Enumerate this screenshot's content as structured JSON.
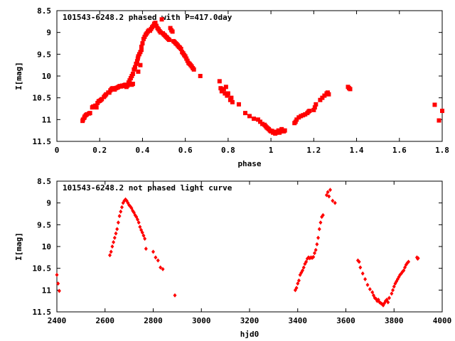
{
  "chart_data": [
    {
      "type": "scatter",
      "title": "101543-6248.2 phased with P=417.0day",
      "xlabel": "phase",
      "ylabel": "I[mag]",
      "xlim": [
        0,
        1.8
      ],
      "ylim": [
        11.5,
        8.5
      ],
      "y_inverted": true,
      "grid": false,
      "marker_color": "#ff0000",
      "marker_style": "filled-square",
      "x_ticks": [
        "0",
        "0.2",
        "0.4",
        "0.6",
        "0.8",
        "1",
        "1.2",
        "1.4",
        "1.6",
        "1.8"
      ],
      "y_ticks": [
        "8.5",
        "9",
        "9.5",
        "10",
        "10.5",
        "11",
        "11.5"
      ],
      "points": [
        [
          0.12,
          11.03
        ],
        [
          0.122,
          11.0
        ],
        [
          0.128,
          10.96
        ],
        [
          0.13,
          10.93
        ],
        [
          0.135,
          10.9
        ],
        [
          0.14,
          10.88
        ],
        [
          0.15,
          10.86
        ],
        [
          0.155,
          10.85
        ],
        [
          0.165,
          10.72
        ],
        [
          0.17,
          10.7
        ],
        [
          0.175,
          10.7
        ],
        [
          0.18,
          10.68
        ],
        [
          0.185,
          10.72
        ],
        [
          0.19,
          10.62
        ],
        [
          0.195,
          10.58
        ],
        [
          0.2,
          10.57
        ],
        [
          0.205,
          10.55
        ],
        [
          0.21,
          10.53
        ],
        [
          0.22,
          10.48
        ],
        [
          0.225,
          10.45
        ],
        [
          0.23,
          10.42
        ],
        [
          0.24,
          10.38
        ],
        [
          0.245,
          10.38
        ],
        [
          0.25,
          10.33
        ],
        [
          0.255,
          10.3
        ],
        [
          0.26,
          10.28
        ],
        [
          0.265,
          10.3
        ],
        [
          0.27,
          10.31
        ],
        [
          0.275,
          10.28
        ],
        [
          0.28,
          10.27
        ],
        [
          0.285,
          10.26
        ],
        [
          0.29,
          10.24
        ],
        [
          0.295,
          10.23
        ],
        [
          0.3,
          10.24
        ],
        [
          0.305,
          10.22
        ],
        [
          0.31,
          10.23
        ],
        [
          0.315,
          10.21
        ],
        [
          0.32,
          10.2
        ],
        [
          0.325,
          10.25
        ],
        [
          0.33,
          10.22
        ],
        [
          0.335,
          10.15
        ],
        [
          0.34,
          10.1
        ],
        [
          0.345,
          10.05
        ],
        [
          0.35,
          10.0
        ],
        [
          0.355,
          9.95
        ],
        [
          0.345,
          10.19
        ],
        [
          0.35,
          10.2
        ],
        [
          0.355,
          10.18
        ],
        [
          0.36,
          9.85
        ],
        [
          0.365,
          9.8
        ],
        [
          0.37,
          9.72
        ],
        [
          0.375,
          9.66
        ],
        [
          0.378,
          9.6
        ],
        [
          0.38,
          9.55
        ],
        [
          0.385,
          9.5
        ],
        [
          0.39,
          9.45
        ],
        [
          0.395,
          9.4
        ],
        [
          0.38,
          9.9
        ],
        [
          0.39,
          9.75
        ],
        [
          0.395,
          9.33
        ],
        [
          0.4,
          9.25
        ],
        [
          0.405,
          9.15
        ],
        [
          0.41,
          9.1
        ],
        [
          0.415,
          9.05
        ],
        [
          0.42,
          9.02
        ],
        [
          0.425,
          8.98
        ],
        [
          0.43,
          8.95
        ],
        [
          0.435,
          8.96
        ],
        [
          0.44,
          8.92
        ],
        [
          0.445,
          8.88
        ],
        [
          0.45,
          8.85
        ],
        [
          0.455,
          8.8
        ],
        [
          0.46,
          8.78
        ],
        [
          0.465,
          8.85
        ],
        [
          0.47,
          8.9
        ],
        [
          0.475,
          8.93
        ],
        [
          0.48,
          8.97
        ],
        [
          0.485,
          9.0
        ],
        [
          0.49,
          8.7
        ],
        [
          0.495,
          9.02
        ],
        [
          0.5,
          9.05
        ],
        [
          0.505,
          9.07
        ],
        [
          0.51,
          9.1
        ],
        [
          0.515,
          9.12
        ],
        [
          0.52,
          9.15
        ],
        [
          0.525,
          9.17
        ],
        [
          0.53,
          8.9
        ],
        [
          0.535,
          8.95
        ],
        [
          0.54,
          8.98
        ],
        [
          0.545,
          9.2
        ],
        [
          0.55,
          9.22
        ],
        [
          0.555,
          9.25
        ],
        [
          0.56,
          9.27
        ],
        [
          0.565,
          9.3
        ],
        [
          0.57,
          9.33
        ],
        [
          0.575,
          9.35
        ],
        [
          0.58,
          9.38
        ],
        [
          0.585,
          9.45
        ],
        [
          0.59,
          9.48
        ],
        [
          0.595,
          9.52
        ],
        [
          0.6,
          9.55
        ],
        [
          0.605,
          9.6
        ],
        [
          0.61,
          9.65
        ],
        [
          0.615,
          9.7
        ],
        [
          0.62,
          9.72
        ],
        [
          0.625,
          9.75
        ],
        [
          0.63,
          9.78
        ],
        [
          0.635,
          9.82
        ],
        [
          0.64,
          9.85
        ],
        [
          0.67,
          10.0
        ],
        [
          0.76,
          10.12
        ],
        [
          0.765,
          10.28
        ],
        [
          0.77,
          10.35
        ],
        [
          0.78,
          10.3
        ],
        [
          0.785,
          10.4
        ],
        [
          0.79,
          10.25
        ],
        [
          0.795,
          10.45
        ],
        [
          0.8,
          10.4
        ],
        [
          0.81,
          10.55
        ],
        [
          0.815,
          10.5
        ],
        [
          0.82,
          10.6
        ],
        [
          0.85,
          10.65
        ],
        [
          0.88,
          10.85
        ],
        [
          0.9,
          10.92
        ],
        [
          0.92,
          10.98
        ],
        [
          0.94,
          11.0
        ],
        [
          0.95,
          11.05
        ],
        [
          0.96,
          11.1
        ],
        [
          0.97,
          11.12
        ],
        [
          0.975,
          11.15
        ],
        [
          0.98,
          11.18
        ],
        [
          0.985,
          11.2
        ],
        [
          0.99,
          11.22
        ],
        [
          0.995,
          11.25
        ],
        [
          1.0,
          11.27
        ],
        [
          1.005,
          11.26
        ],
        [
          1.01,
          11.3
        ],
        [
          1.015,
          11.28
        ],
        [
          1.02,
          11.32
        ],
        [
          1.025,
          11.3
        ],
        [
          1.03,
          11.28
        ],
        [
          1.035,
          11.25
        ],
        [
          1.04,
          11.3
        ],
        [
          1.045,
          11.27
        ],
        [
          1.05,
          11.22
        ],
        [
          1.055,
          11.25
        ],
        [
          1.06,
          11.27
        ],
        [
          1.065,
          11.25
        ],
        [
          1.11,
          11.08
        ],
        [
          1.115,
          11.05
        ],
        [
          1.12,
          11.0
        ],
        [
          1.13,
          10.95
        ],
        [
          1.14,
          10.92
        ],
        [
          1.15,
          10.9
        ],
        [
          1.16,
          10.88
        ],
        [
          1.17,
          10.85
        ],
        [
          1.175,
          10.82
        ],
        [
          1.18,
          10.8
        ],
        [
          1.2,
          10.78
        ],
        [
          1.205,
          10.72
        ],
        [
          1.21,
          10.65
        ],
        [
          1.23,
          10.55
        ],
        [
          1.24,
          10.5
        ],
        [
          1.25,
          10.45
        ],
        [
          1.26,
          10.4
        ],
        [
          1.265,
          10.38
        ],
        [
          1.27,
          10.42
        ],
        [
          1.36,
          10.25
        ],
        [
          1.365,
          10.28
        ],
        [
          1.37,
          10.3
        ],
        [
          1.765,
          10.66
        ],
        [
          1.785,
          11.02
        ],
        [
          1.8,
          10.8
        ]
      ]
    },
    {
      "type": "scatter",
      "title": "101543-6248.2 not phased light curve",
      "xlabel": "hjd0",
      "ylabel": "I[mag]",
      "xlim": [
        2400,
        4000
      ],
      "ylim": [
        11.5,
        8.5
      ],
      "y_inverted": true,
      "grid": false,
      "marker_color": "#ff0000",
      "marker_style": "diamond",
      "x_ticks": [
        "2400",
        "2600",
        "2800",
        "3000",
        "3200",
        "3400",
        "3600",
        "3800",
        "4000"
      ],
      "y_ticks": [
        "8.5",
        "9",
        "9.5",
        "10",
        "10.5",
        "11",
        "11.5"
      ],
      "points": [
        [
          2400,
          10.65
        ],
        [
          2405,
          10.85
        ],
        [
          2410,
          11.02
        ],
        [
          2620,
          10.2
        ],
        [
          2625,
          10.12
        ],
        [
          2630,
          10.0
        ],
        [
          2635,
          9.9
        ],
        [
          2640,
          9.8
        ],
        [
          2645,
          9.7
        ],
        [
          2650,
          9.6
        ],
        [
          2655,
          9.45
        ],
        [
          2660,
          9.3
        ],
        [
          2665,
          9.2
        ],
        [
          2670,
          9.1
        ],
        [
          2675,
          9.0
        ],
        [
          2680,
          8.95
        ],
        [
          2685,
          8.92
        ],
        [
          2690,
          8.95
        ],
        [
          2695,
          9.0
        ],
        [
          2700,
          9.05
        ],
        [
          2705,
          9.08
        ],
        [
          2710,
          9.12
        ],
        [
          2715,
          9.18
        ],
        [
          2720,
          9.22
        ],
        [
          2725,
          9.28
        ],
        [
          2730,
          9.32
        ],
        [
          2735,
          9.38
        ],
        [
          2740,
          9.45
        ],
        [
          2745,
          9.55
        ],
        [
          2750,
          9.62
        ],
        [
          2755,
          9.68
        ],
        [
          2760,
          9.75
        ],
        [
          2765,
          9.82
        ],
        [
          2770,
          10.05
        ],
        [
          2800,
          10.12
        ],
        [
          2810,
          10.25
        ],
        [
          2820,
          10.32
        ],
        [
          2830,
          10.48
        ],
        [
          2840,
          10.52
        ],
        [
          2890,
          11.12
        ],
        [
          3390,
          11.0
        ],
        [
          3395,
          10.95
        ],
        [
          3400,
          10.85
        ],
        [
          3405,
          10.78
        ],
        [
          3410,
          10.65
        ],
        [
          3415,
          10.6
        ],
        [
          3420,
          10.55
        ],
        [
          3425,
          10.48
        ],
        [
          3430,
          10.4
        ],
        [
          3435,
          10.35
        ],
        [
          3440,
          10.28
        ],
        [
          3445,
          10.25
        ],
        [
          3450,
          10.27
        ],
        [
          3455,
          10.25
        ],
        [
          3460,
          10.26
        ],
        [
          3465,
          10.24
        ],
        [
          3470,
          10.15
        ],
        [
          3475,
          10.08
        ],
        [
          3480,
          9.95
        ],
        [
          3485,
          9.8
        ],
        [
          3490,
          9.6
        ],
        [
          3495,
          9.45
        ],
        [
          3500,
          9.32
        ],
        [
          3505,
          9.28
        ],
        [
          3520,
          8.82
        ],
        [
          3525,
          8.75
        ],
        [
          3530,
          8.85
        ],
        [
          3535,
          8.7
        ],
        [
          3545,
          8.95
        ],
        [
          3555,
          9.0
        ],
        [
          3650,
          10.32
        ],
        [
          3655,
          10.35
        ],
        [
          3660,
          10.48
        ],
        [
          3670,
          10.62
        ],
        [
          3680,
          10.75
        ],
        [
          3690,
          10.88
        ],
        [
          3700,
          10.98
        ],
        [
          3710,
          11.05
        ],
        [
          3715,
          11.12
        ],
        [
          3720,
          11.18
        ],
        [
          3725,
          11.2
        ],
        [
          3730,
          11.25
        ],
        [
          3735,
          11.22
        ],
        [
          3740,
          11.28
        ],
        [
          3745,
          11.3
        ],
        [
          3750,
          11.32
        ],
        [
          3755,
          11.35
        ],
        [
          3760,
          11.3
        ],
        [
          3765,
          11.25
        ],
        [
          3770,
          11.22
        ],
        [
          3775,
          11.28
        ],
        [
          3780,
          11.18
        ],
        [
          3790,
          11.08
        ],
        [
          3795,
          11.0
        ],
        [
          3800,
          10.92
        ],
        [
          3805,
          10.85
        ],
        [
          3810,
          10.8
        ],
        [
          3815,
          10.75
        ],
        [
          3820,
          10.7
        ],
        [
          3825,
          10.65
        ],
        [
          3830,
          10.62
        ],
        [
          3835,
          10.58
        ],
        [
          3840,
          10.55
        ],
        [
          3845,
          10.48
        ],
        [
          3850,
          10.42
        ],
        [
          3855,
          10.38
        ],
        [
          3860,
          10.35
        ],
        [
          3895,
          10.25
        ],
        [
          3898,
          10.28
        ],
        [
          3900,
          10.27
        ]
      ]
    }
  ]
}
